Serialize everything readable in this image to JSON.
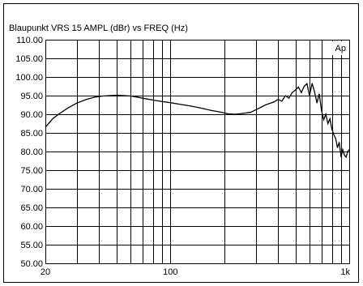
{
  "chart_data": {
    "type": "line",
    "title": "Blaupunkt   VRS 15 AMPL (dBr) vs  FREQ (Hz)",
    "badge": "Ap",
    "x_scale": "log",
    "xlim": [
      20,
      1000
    ],
    "ylim": [
      50,
      110
    ],
    "x_ticks": [
      {
        "value": 20,
        "label": "20"
      },
      {
        "value": 100,
        "label": "100"
      },
      {
        "value": 1000,
        "label": "1k"
      }
    ],
    "x_gridlines": [
      20,
      30,
      40,
      50,
      60,
      70,
      80,
      90,
      100,
      200,
      300,
      400,
      500,
      600,
      700,
      800,
      900,
      1000
    ],
    "y_ticks": [
      {
        "value": 110,
        "label": "110.00"
      },
      {
        "value": 105,
        "label": "105.00"
      },
      {
        "value": 100,
        "label": "100.00"
      },
      {
        "value": 95,
        "label": "95.00"
      },
      {
        "value": 90,
        "label": "90.00"
      },
      {
        "value": 85,
        "label": "85.00"
      },
      {
        "value": 80,
        "label": "80.00"
      },
      {
        "value": 75,
        "label": "75.00"
      },
      {
        "value": 70,
        "label": "70.00"
      },
      {
        "value": 65,
        "label": "65.00"
      },
      {
        "value": 60,
        "label": "60.00"
      },
      {
        "value": 55,
        "label": "55.00"
      },
      {
        "value": 50,
        "label": "50.00"
      }
    ],
    "grid": true,
    "series": [
      {
        "x": [
          20,
          22,
          24,
          27,
          30,
          34,
          38,
          42,
          46,
          50,
          55,
          60,
          65,
          70,
          80,
          90,
          100,
          115,
          130,
          150,
          170,
          190,
          210,
          230,
          250,
          280,
          310,
          340,
          380,
          400,
          420,
          440,
          460,
          480,
          500,
          520,
          540,
          560,
          580,
          600,
          620,
          640,
          660,
          680,
          700,
          720,
          740,
          760,
          780,
          800,
          820,
          840,
          860,
          880,
          900,
          920,
          940,
          960,
          980,
          1000
        ],
        "y": [
          86.5,
          88.8,
          90.2,
          91.8,
          93.0,
          94.0,
          94.6,
          94.9,
          95.0,
          95.1,
          95.0,
          94.9,
          94.6,
          94.3,
          93.8,
          93.4,
          93.1,
          92.6,
          92.2,
          91.6,
          91.0,
          90.6,
          90.1,
          90.0,
          90.2,
          90.5,
          91.5,
          92.5,
          93.3,
          94.0,
          93.5,
          95.0,
          94.3,
          95.8,
          96.5,
          97.3,
          95.8,
          97.5,
          98.2,
          95.0,
          98.3,
          96.0,
          93.0,
          95.5,
          91.0,
          88.5,
          90.0,
          87.5,
          88.8,
          86.0,
          84.5,
          83.5,
          81.0,
          82.5,
          78.5,
          80.5,
          79.0,
          78.5,
          80.0,
          80.5
        ]
      }
    ]
  }
}
